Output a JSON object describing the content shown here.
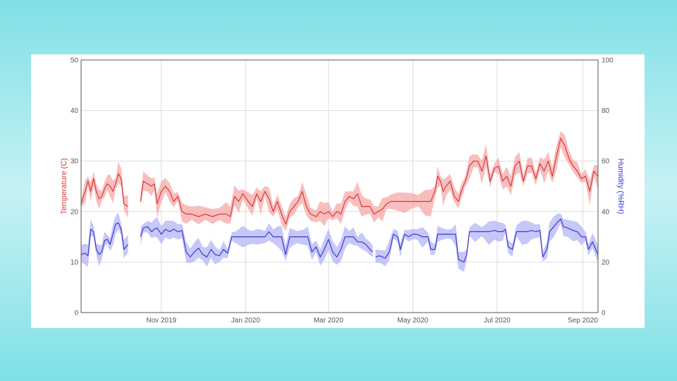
{
  "chart_data": {
    "type": "line",
    "title": "",
    "x_tick_labels": [
      "Nov 2019",
      "Jan 2020",
      "Mar 2020",
      "May 2020",
      "Jul 2020",
      "Sep 2020"
    ],
    "x_tick_dates": [
      "2019-11-01",
      "2020-01-01",
      "2020-03-01",
      "2020-05-01",
      "2020-07-01",
      "2020-09-01"
    ],
    "xlim": [
      "2019-09-04",
      "2020-09-12"
    ],
    "y_left": {
      "label": "Temperature (C)",
      "ylim": [
        0,
        50
      ],
      "ticks": [
        "0",
        "10",
        "20",
        "30",
        "40",
        "50"
      ],
      "color": "#d63a3a"
    },
    "y_right": {
      "label": "Humidity (%RH)",
      "ylim": [
        0,
        100
      ],
      "ticks": [
        "0",
        "20",
        "40",
        "60",
        "80",
        "100"
      ],
      "color": "#3a3acf"
    },
    "grid": true,
    "series": [
      {
        "axis": "left",
        "color": "#d63a3a",
        "band_color": "#f5a8a8",
        "segments": [
          [
            [
              "2019-09-04",
              21.5
            ],
            [
              "2019-09-07",
              24
            ],
            [
              "2019-09-09",
              26
            ],
            [
              "2019-09-11",
              24
            ],
            [
              "2019-09-13",
              26.5
            ],
            [
              "2019-09-15",
              24
            ],
            [
              "2019-09-17",
              22.5
            ],
            [
              "2019-09-19",
              23
            ],
            [
              "2019-09-21",
              24.5
            ],
            [
              "2019-09-23",
              25.5
            ],
            [
              "2019-09-25",
              25
            ],
            [
              "2019-09-27",
              24
            ],
            [
              "2019-09-29",
              25.5
            ],
            [
              "2019-10-01",
              27.5
            ],
            [
              "2019-10-03",
              26.5
            ],
            [
              "2019-10-05",
              21.5
            ],
            [
              "2019-10-08",
              21
            ]
          ],
          [
            [
              "2019-10-17",
              22
            ],
            [
              "2019-10-19",
              26
            ],
            [
              "2019-10-22",
              25.5
            ],
            [
              "2019-10-25",
              25
            ],
            [
              "2019-10-27",
              25.5
            ],
            [
              "2019-10-29",
              21.5
            ],
            [
              "2019-11-01",
              24
            ],
            [
              "2019-11-04",
              25
            ],
            [
              "2019-11-07",
              24
            ],
            [
              "2019-11-10",
              22
            ],
            [
              "2019-11-13",
              23
            ],
            [
              "2019-11-16",
              20
            ],
            [
              "2019-11-19",
              19.5
            ],
            [
              "2019-11-23",
              19.5
            ],
            [
              "2019-11-28",
              19
            ],
            [
              "2019-12-03",
              19.5
            ],
            [
              "2019-12-08",
              19
            ],
            [
              "2019-12-13",
              19.5
            ],
            [
              "2019-12-18",
              19.5
            ],
            [
              "2019-12-21",
              19
            ],
            [
              "2019-12-24",
              23
            ],
            [
              "2019-12-27",
              22
            ],
            [
              "2019-12-30",
              23.5
            ],
            [
              "2020-01-03",
              22
            ],
            [
              "2020-01-06",
              21
            ],
            [
              "2020-01-09",
              23.5
            ],
            [
              "2020-01-12",
              22
            ],
            [
              "2020-01-15",
              24
            ],
            [
              "2020-01-18",
              22.5
            ],
            [
              "2020-01-21",
              20
            ],
            [
              "2020-01-24",
              22
            ],
            [
              "2020-01-27",
              19.5
            ],
            [
              "2020-01-30",
              17.5
            ],
            [
              "2020-02-02",
              20
            ],
            [
              "2020-02-05",
              21
            ],
            [
              "2020-02-08",
              22
            ],
            [
              "2020-02-11",
              24
            ],
            [
              "2020-02-14",
              21
            ],
            [
              "2020-02-17",
              19.5
            ],
            [
              "2020-02-21",
              19
            ],
            [
              "2020-02-24",
              20
            ],
            [
              "2020-02-27",
              19.5
            ],
            [
              "2020-03-01",
              20
            ],
            [
              "2020-03-04",
              19
            ],
            [
              "2020-03-07",
              20
            ],
            [
              "2020-03-10",
              19.5
            ],
            [
              "2020-03-13",
              22
            ],
            [
              "2020-03-16",
              23
            ],
            [
              "2020-03-19",
              22.5
            ],
            [
              "2020-03-22",
              23.5
            ],
            [
              "2020-03-25",
              21
            ],
            [
              "2020-03-28",
              21
            ],
            [
              "2020-03-31",
              21
            ],
            [
              "2020-04-03",
              19.5
            ],
            [
              "2020-04-06",
              20
            ],
            [
              "2020-04-09",
              20.5
            ],
            [
              "2020-04-12",
              21.5
            ],
            [
              "2020-04-15",
              22
            ],
            [
              "2020-04-20",
              22
            ],
            [
              "2020-04-25",
              22
            ],
            [
              "2020-04-30",
              22
            ],
            [
              "2020-05-05",
              22
            ],
            [
              "2020-05-10",
              22
            ],
            [
              "2020-05-14",
              22
            ],
            [
              "2020-05-17",
              24
            ],
            [
              "2020-05-19",
              27
            ],
            [
              "2020-05-21",
              26
            ],
            [
              "2020-05-23",
              24
            ],
            [
              "2020-05-25",
              25
            ],
            [
              "2020-05-28",
              26
            ],
            [
              "2020-05-31",
              23
            ],
            [
              "2020-06-03",
              22
            ],
            [
              "2020-06-05",
              24
            ],
            [
              "2020-06-08",
              26
            ],
            [
              "2020-06-11",
              29
            ],
            [
              "2020-06-14",
              30
            ],
            [
              "2020-06-17",
              30
            ],
            [
              "2020-06-20",
              28
            ],
            [
              "2020-06-23",
              31
            ],
            [
              "2020-06-26",
              26
            ],
            [
              "2020-06-29",
              28.5
            ],
            [
              "2020-07-02",
              29
            ],
            [
              "2020-07-05",
              26
            ],
            [
              "2020-07-08",
              27
            ],
            [
              "2020-07-11",
              25
            ],
            [
              "2020-07-14",
              29
            ],
            [
              "2020-07-17",
              30
            ],
            [
              "2020-07-20",
              26
            ],
            [
              "2020-07-23",
              29
            ],
            [
              "2020-07-26",
              29
            ],
            [
              "2020-07-29",
              26.5
            ],
            [
              "2020-08-01",
              29.5
            ],
            [
              "2020-08-04",
              28
            ],
            [
              "2020-08-07",
              30
            ],
            [
              "2020-08-10",
              27
            ],
            [
              "2020-08-13",
              31
            ],
            [
              "2020-08-16",
              34.5
            ],
            [
              "2020-08-19",
              33
            ],
            [
              "2020-08-22",
              30.5
            ],
            [
              "2020-08-25",
              29
            ],
            [
              "2020-08-28",
              28
            ],
            [
              "2020-08-31",
              26.5
            ],
            [
              "2020-09-03",
              27
            ],
            [
              "2020-09-06",
              24
            ],
            [
              "2020-09-09",
              28
            ],
            [
              "2020-09-12",
              27
            ]
          ]
        ]
      },
      {
        "axis": "right",
        "color": "#3a3acf",
        "band_color": "#b4b4f5",
        "segments": [
          [
            [
              "2019-09-04",
              23
            ],
            [
              "2019-09-07",
              23.5
            ],
            [
              "2019-09-09",
              22.5
            ],
            [
              "2019-09-11",
              33
            ],
            [
              "2019-09-13",
              32
            ],
            [
              "2019-09-15",
              25
            ],
            [
              "2019-09-17",
              23
            ],
            [
              "2019-09-19",
              24
            ],
            [
              "2019-09-21",
              28.5
            ],
            [
              "2019-09-23",
              29
            ],
            [
              "2019-09-25",
              27
            ],
            [
              "2019-09-27",
              31
            ],
            [
              "2019-09-29",
              35
            ],
            [
              "2019-10-01",
              35.5
            ],
            [
              "2019-10-03",
              33
            ],
            [
              "2019-10-05",
              25
            ],
            [
              "2019-10-08",
              27
            ]
          ],
          [
            [
              "2019-10-17",
              30
            ],
            [
              "2019-10-19",
              33.5
            ],
            [
              "2019-10-22",
              34
            ],
            [
              "2019-10-25",
              32
            ],
            [
              "2019-10-27",
              33
            ],
            [
              "2019-10-29",
              33.5
            ],
            [
              "2019-11-01",
              31
            ],
            [
              "2019-11-04",
              33
            ],
            [
              "2019-11-07",
              32
            ],
            [
              "2019-11-10",
              33
            ],
            [
              "2019-11-13",
              32
            ],
            [
              "2019-11-16",
              32.5
            ],
            [
              "2019-11-19",
              24
            ],
            [
              "2019-11-22",
              22
            ],
            [
              "2019-11-25",
              24
            ],
            [
              "2019-11-28",
              25.5
            ],
            [
              "2019-12-01",
              23
            ],
            [
              "2019-12-04",
              22
            ],
            [
              "2019-12-07",
              25
            ],
            [
              "2019-12-10",
              23
            ],
            [
              "2019-12-13",
              22.5
            ],
            [
              "2019-12-16",
              25
            ],
            [
              "2019-12-19",
              23.5
            ],
            [
              "2019-12-22",
              30
            ],
            [
              "2019-12-25",
              30
            ],
            [
              "2019-12-30",
              30
            ],
            [
              "2020-01-05",
              30
            ],
            [
              "2020-01-10",
              30
            ],
            [
              "2020-01-15",
              30
            ],
            [
              "2020-01-18",
              32
            ],
            [
              "2020-01-21",
              30
            ],
            [
              "2020-01-24",
              30
            ],
            [
              "2020-01-27",
              30
            ],
            [
              "2020-01-30",
              23
            ],
            [
              "2020-02-02",
              30
            ],
            [
              "2020-02-07",
              30
            ],
            [
              "2020-02-12",
              30
            ],
            [
              "2020-02-15",
              30
            ],
            [
              "2020-02-18",
              24
            ],
            [
              "2020-02-21",
              26
            ],
            [
              "2020-02-24",
              22
            ],
            [
              "2020-02-27",
              25
            ],
            [
              "2020-03-01",
              29
            ],
            [
              "2020-03-04",
              24
            ],
            [
              "2020-03-07",
              22
            ],
            [
              "2020-03-10",
              25
            ],
            [
              "2020-03-13",
              30
            ],
            [
              "2020-03-16",
              30
            ],
            [
              "2020-03-19",
              30
            ],
            [
              "2020-03-22",
              28
            ],
            [
              "2020-03-25",
              28
            ],
            [
              "2020-03-28",
              27
            ],
            [
              "2020-03-31",
              25
            ],
            [
              "2020-04-02",
              24
            ]
          ],
          [
            [
              "2020-04-04",
              22
            ],
            [
              "2020-04-07",
              22.5
            ],
            [
              "2020-04-11",
              21.5
            ],
            [
              "2020-04-14",
              24
            ],
            [
              "2020-04-17",
              31
            ],
            [
              "2020-04-20",
              30
            ],
            [
              "2020-04-22",
              25
            ],
            [
              "2020-04-25",
              31
            ],
            [
              "2020-04-28",
              30
            ],
            [
              "2020-05-01",
              31
            ],
            [
              "2020-05-04",
              31
            ],
            [
              "2020-05-08",
              30
            ],
            [
              "2020-05-12",
              30
            ],
            [
              "2020-05-14",
              25
            ],
            [
              "2020-05-17",
              25
            ],
            [
              "2020-05-19",
              31
            ],
            [
              "2020-05-23",
              31
            ],
            [
              "2020-05-26",
              31
            ],
            [
              "2020-05-29",
              31
            ],
            [
              "2020-06-01",
              31
            ],
            [
              "2020-06-03",
              21
            ],
            [
              "2020-06-07",
              20
            ],
            [
              "2020-06-09",
              23
            ],
            [
              "2020-06-11",
              32
            ],
            [
              "2020-06-15",
              32
            ],
            [
              "2020-06-20",
              32
            ],
            [
              "2020-06-25",
              32
            ],
            [
              "2020-06-29",
              32.5
            ],
            [
              "2020-07-02",
              32
            ],
            [
              "2020-07-05",
              32
            ],
            [
              "2020-07-07",
              33
            ],
            [
              "2020-07-09",
              26
            ],
            [
              "2020-07-12",
              25
            ],
            [
              "2020-07-15",
              32
            ],
            [
              "2020-07-19",
              32
            ],
            [
              "2020-07-23",
              32
            ],
            [
              "2020-07-26",
              32.5
            ],
            [
              "2020-07-29",
              32
            ],
            [
              "2020-08-01",
              32.5
            ],
            [
              "2020-08-03",
              22
            ],
            [
              "2020-08-06",
              25
            ],
            [
              "2020-08-08",
              32
            ],
            [
              "2020-08-11",
              34
            ],
            [
              "2020-08-14",
              36
            ],
            [
              "2020-08-16",
              37
            ],
            [
              "2020-08-18",
              34
            ],
            [
              "2020-08-21",
              33.5
            ],
            [
              "2020-08-25",
              32.5
            ],
            [
              "2020-08-28",
              32
            ],
            [
              "2020-08-31",
              30
            ],
            [
              "2020-09-03",
              30
            ],
            [
              "2020-09-05",
              25
            ],
            [
              "2020-09-08",
              28
            ],
            [
              "2020-09-12",
              23
            ]
          ]
        ]
      }
    ]
  }
}
